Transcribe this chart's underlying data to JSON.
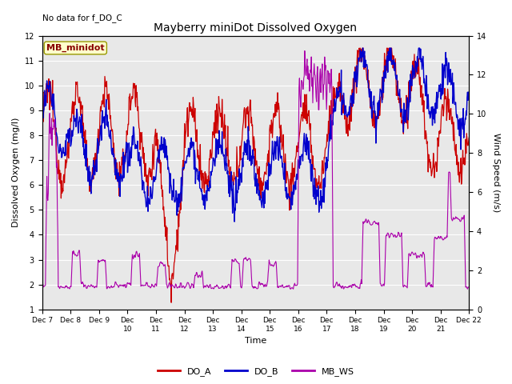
{
  "title": "Mayberry miniDot Dissolved Oxygen",
  "subtitle": "No data for f_DO_C",
  "xlabel": "Time",
  "ylabel_left": "Dissolved Oxygen (mg/l)",
  "ylabel_right": "Wind Speed (m/s)",
  "ylim_left": [
    1.0,
    12.0
  ],
  "ylim_right": [
    0,
    14
  ],
  "yticks_left": [
    1.0,
    2.0,
    3.0,
    4.0,
    5.0,
    6.0,
    7.0,
    8.0,
    9.0,
    10.0,
    11.0,
    12.0
  ],
  "yticks_right": [
    0,
    2,
    4,
    6,
    8,
    10,
    12,
    14
  ],
  "color_DO_A": "#cc0000",
  "color_DO_B": "#0000cc",
  "color_MB_WS": "#aa00aa",
  "annotation_box": "MB_minidot",
  "background_color": "#e8e8e8",
  "grid_color": "#ffffff",
  "n_points": 900
}
